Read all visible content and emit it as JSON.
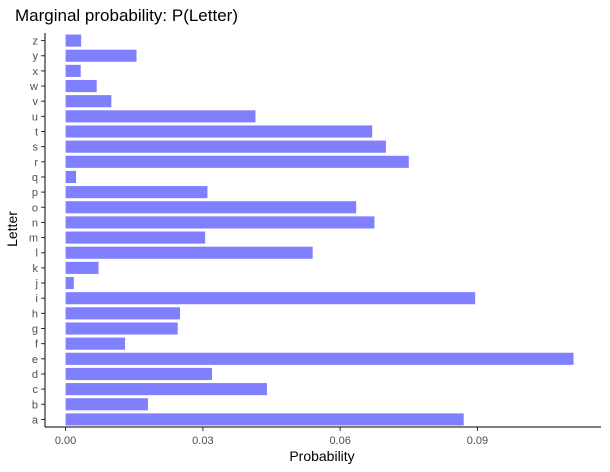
{
  "chart_data": {
    "type": "bar",
    "orientation": "horizontal",
    "title": "Marginal probability: P(Letter)",
    "xlabel": "Probability",
    "ylabel": "Letter",
    "xlim": [
      -0.0045,
      0.117
    ],
    "xticks": [
      0.0,
      0.03,
      0.06,
      0.09
    ],
    "xtick_labels": [
      "0.00",
      "0.03",
      "0.06",
      "0.09"
    ],
    "grid": false,
    "bar_color": "#8080ff",
    "categories": [
      "a",
      "b",
      "c",
      "d",
      "e",
      "f",
      "g",
      "h",
      "i",
      "j",
      "k",
      "l",
      "m",
      "n",
      "o",
      "p",
      "q",
      "r",
      "s",
      "t",
      "u",
      "v",
      "w",
      "x",
      "y",
      "z"
    ],
    "values": [
      0.087,
      0.018,
      0.044,
      0.032,
      0.111,
      0.013,
      0.0245,
      0.025,
      0.0895,
      0.0018,
      0.0072,
      0.054,
      0.0305,
      0.0675,
      0.0635,
      0.031,
      0.0023,
      0.075,
      0.07,
      0.067,
      0.0415,
      0.01,
      0.0068,
      0.0033,
      0.0155,
      0.0034
    ]
  }
}
